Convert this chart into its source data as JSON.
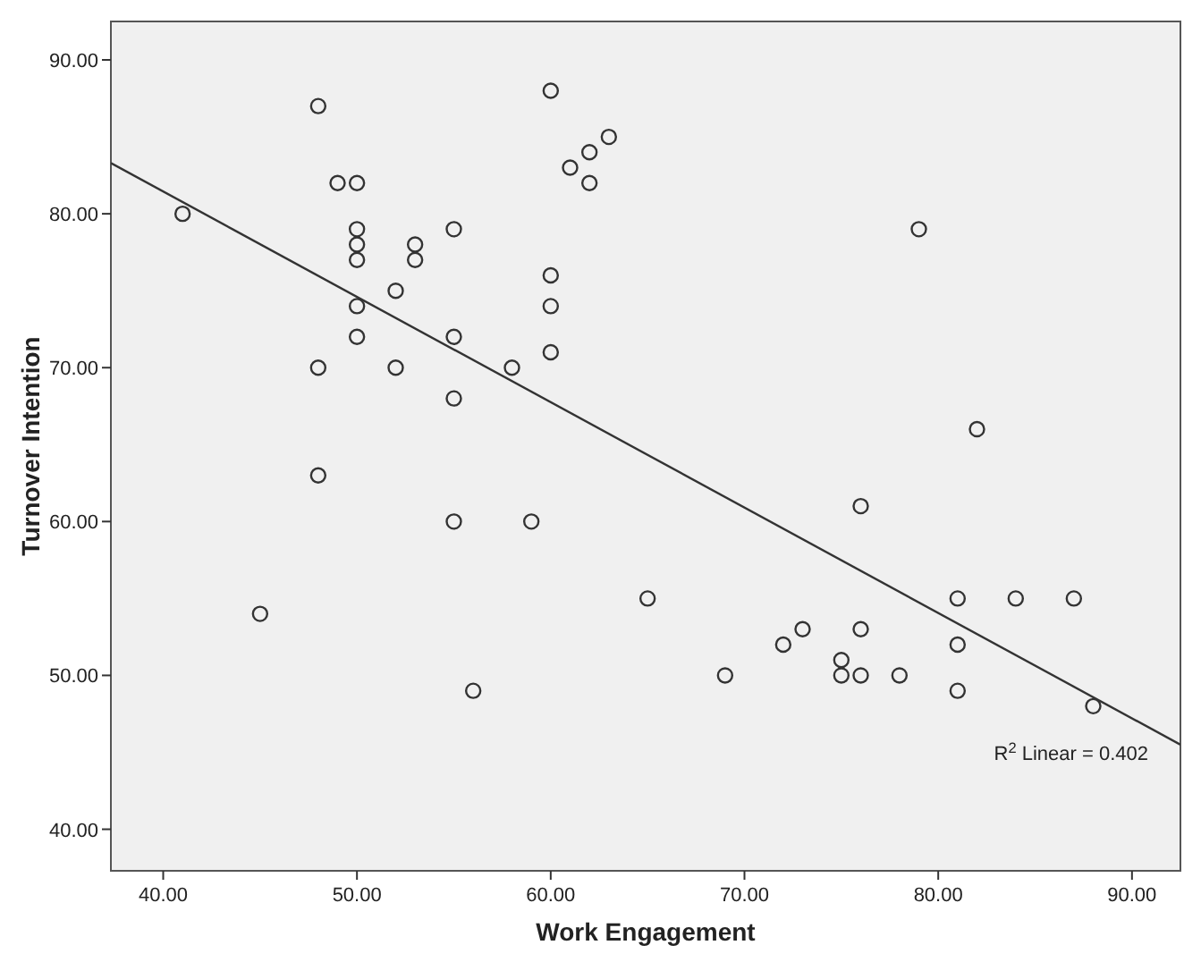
{
  "chart_data": {
    "type": "scatter",
    "xlabel": "Work Engagement",
    "ylabel": "Turnover Intention",
    "xlim": [
      37.3,
      92.5
    ],
    "ylim": [
      37.3,
      92.5
    ],
    "xticks": [
      {
        "value": 40,
        "label": "40.00"
      },
      {
        "value": 50,
        "label": "50.00"
      },
      {
        "value": 60,
        "label": "60.00"
      },
      {
        "value": 70,
        "label": "70.00"
      },
      {
        "value": 80,
        "label": "80.00"
      },
      {
        "value": 90,
        "label": "90.00"
      }
    ],
    "yticks": [
      {
        "value": 40,
        "label": "40.00"
      },
      {
        "value": 50,
        "label": "50.00"
      },
      {
        "value": 60,
        "label": "60.00"
      },
      {
        "value": 70,
        "label": "70.00"
      },
      {
        "value": 80,
        "label": "80.00"
      },
      {
        "value": 90,
        "label": "90.00"
      }
    ],
    "grid": false,
    "annotations": [
      "R$^{2}$ Linear = 0.402"
    ],
    "series": [
      {
        "marker": "circle",
        "color": "#333333",
        "x": [
          41,
          45,
          48,
          48,
          48,
          49,
          50,
          50,
          50,
          50,
          50,
          50,
          52,
          52,
          53,
          53,
          55,
          55,
          55,
          55,
          56,
          58,
          59,
          60,
          60,
          60,
          60,
          61,
          62,
          62,
          63,
          65,
          69,
          72,
          73,
          75,
          75,
          76,
          76,
          76,
          78,
          79,
          81,
          81,
          81,
          82,
          84,
          87,
          88
        ],
        "values": [
          80,
          54,
          87,
          70,
          63,
          82,
          82,
          79,
          78,
          77,
          74,
          72,
          75,
          70,
          78,
          77,
          79,
          72,
          68,
          60,
          49,
          70,
          60,
          88,
          76,
          74,
          71,
          83,
          84,
          82,
          85,
          55,
          50,
          52,
          53,
          51,
          50,
          61,
          53,
          50,
          50,
          79,
          55,
          52,
          49,
          66,
          55,
          55,
          48
        ]
      },
      {
        "type": "line",
        "marker": "none",
        "color": "#333333",
        "x": [
          37.3,
          92.5
        ],
        "values": [
          83.3,
          45.5
        ]
      }
    ]
  }
}
